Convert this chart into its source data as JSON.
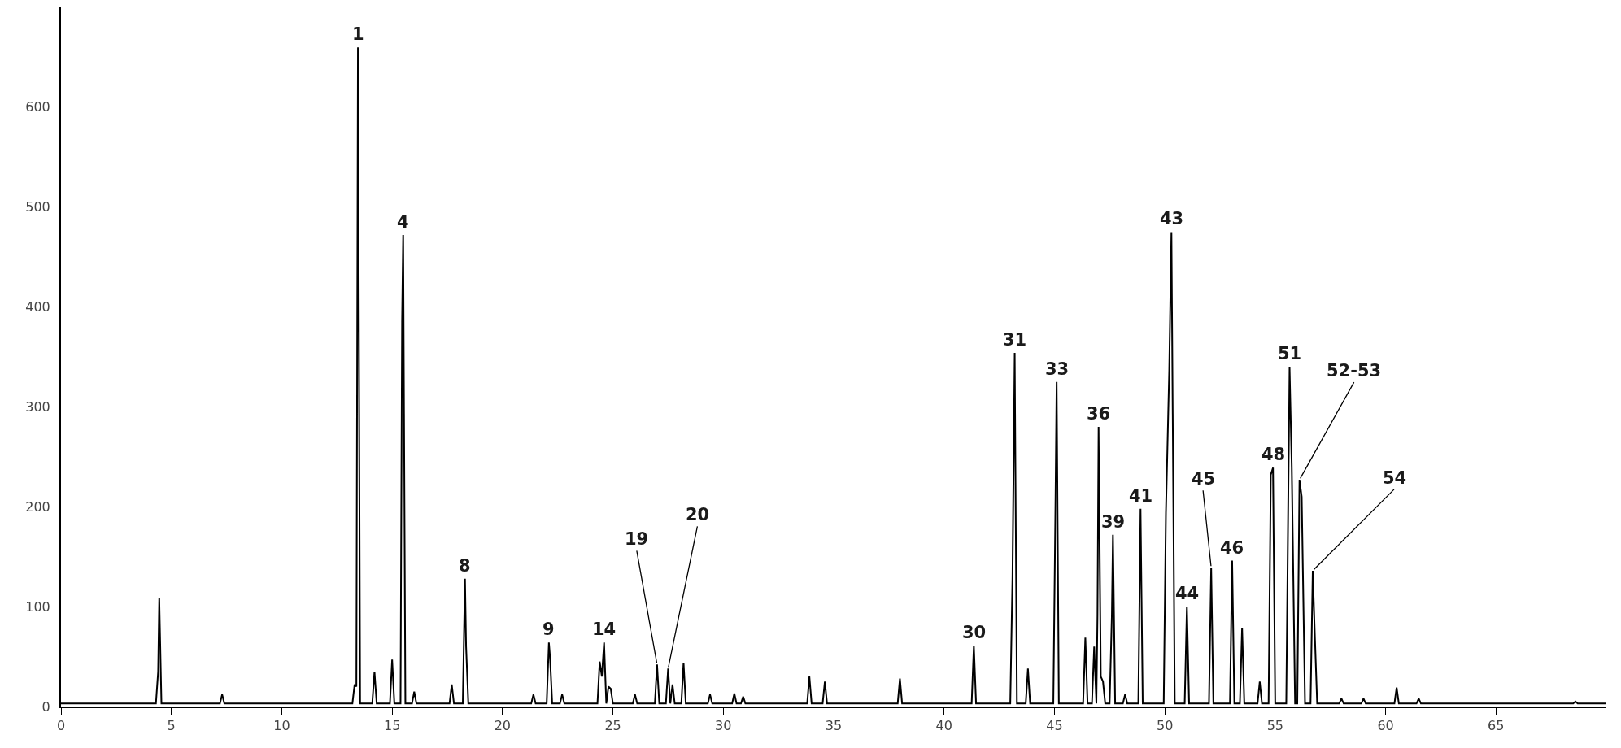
{
  "chart_data": {
    "type": "line",
    "x": [
      0,
      4.3,
      4.4,
      4.45,
      4.55,
      7.2,
      7.3,
      7.4,
      13.2,
      13.3,
      13.38,
      13.45,
      13.55,
      14.1,
      14.2,
      14.3,
      14.9,
      15.0,
      15.1,
      15.38,
      15.45,
      15.5,
      15.6,
      15.9,
      16.0,
      16.1,
      17.6,
      17.7,
      17.8,
      18.2,
      18.3,
      18.35,
      18.45,
      21.3,
      21.4,
      21.5,
      22.0,
      22.1,
      22.15,
      22.25,
      22.6,
      22.7,
      22.8,
      24.3,
      24.4,
      24.5,
      24.6,
      24.7,
      24.8,
      24.9,
      25.0,
      25.9,
      26.0,
      26.1,
      26.9,
      27.0,
      27.1,
      27.4,
      27.5,
      27.6,
      27.7,
      27.8,
      28.1,
      28.2,
      28.3,
      29.3,
      29.4,
      29.5,
      30.4,
      30.5,
      30.6,
      30.8,
      30.9,
      31.0,
      33.8,
      33.9,
      34.0,
      34.5,
      34.6,
      34.7,
      37.9,
      38.0,
      38.1,
      41.25,
      41.35,
      41.45,
      43.0,
      43.1,
      43.2,
      43.3,
      43.7,
      43.8,
      43.9,
      44.95,
      45.05,
      45.1,
      45.2,
      46.3,
      46.4,
      46.5,
      46.7,
      46.8,
      46.9,
      46.95,
      47.0,
      47.1,
      47.2,
      47.3,
      47.5,
      47.6,
      47.65,
      47.75,
      48.1,
      48.2,
      48.3,
      48.8,
      48.9,
      49.0,
      49.95,
      50.05,
      50.2,
      50.3,
      50.45,
      50.9,
      51.0,
      51.1,
      52.0,
      52.1,
      52.2,
      52.95,
      53.05,
      53.15,
      53.4,
      53.5,
      53.6,
      54.2,
      54.3,
      54.4,
      54.7,
      54.8,
      54.9,
      55.0,
      55.5,
      55.65,
      55.75,
      55.9,
      56.0,
      56.1,
      56.2,
      56.35,
      56.6,
      56.7,
      56.8,
      56.9,
      57.9,
      58.0,
      58.1,
      58.9,
      59.0,
      59.1,
      60.4,
      60.5,
      60.6,
      61.4,
      61.5,
      61.6,
      68.5,
      68.6,
      68.7,
      70
    ],
    "values": [
      3,
      3,
      35,
      109,
      3,
      3,
      12,
      3,
      3,
      22,
      20,
      660,
      3,
      3,
      35,
      3,
      3,
      47,
      3,
      3,
      385,
      472,
      3,
      3,
      15,
      3,
      3,
      22,
      3,
      3,
      128,
      60,
      3,
      3,
      12,
      3,
      3,
      64,
      50,
      3,
      3,
      12,
      3,
      3,
      45,
      30,
      64,
      3,
      20,
      18,
      3,
      3,
      12,
      3,
      3,
      42,
      3,
      3,
      38,
      3,
      22,
      3,
      3,
      44,
      3,
      3,
      12,
      3,
      3,
      13,
      3,
      3,
      10,
      3,
      3,
      30,
      3,
      3,
      25,
      3,
      3,
      28,
      3,
      3,
      61,
      3,
      3,
      130,
      354,
      3,
      3,
      38,
      3,
      3,
      210,
      325,
      3,
      3,
      69,
      3,
      3,
      60,
      3,
      92,
      280,
      30,
      25,
      3,
      3,
      90,
      172,
      3,
      3,
      12,
      3,
      3,
      198,
      3,
      3,
      194,
      337,
      475,
      3,
      3,
      100,
      3,
      3,
      139,
      3,
      3,
      146,
      3,
      3,
      79,
      3,
      3,
      25,
      3,
      3,
      232,
      239,
      3,
      3,
      340,
      240,
      3,
      3,
      227,
      210,
      3,
      3,
      136,
      68,
      3,
      3,
      8,
      3,
      3,
      8,
      3,
      3,
      19,
      3,
      3,
      8,
      3,
      3,
      5,
      3,
      3
    ],
    "color": "#000000",
    "xlim": [
      0,
      70
    ],
    "xticks": [
      0,
      5,
      10,
      15,
      20,
      25,
      30,
      35,
      40,
      45,
      50,
      55,
      60,
      65
    ],
    "ylim": [
      0,
      700
    ],
    "yticks": [
      0,
      100,
      200,
      300,
      400,
      500,
      600
    ],
    "legend": false,
    "annotations": [
      {
        "text": "1",
        "x": 13.45,
        "y": 660
      },
      {
        "text": "4",
        "x": 15.5,
        "y": 472
      },
      {
        "text": "8",
        "x": 18.3,
        "y": 128
      },
      {
        "text": "9",
        "x": 22.1,
        "y": 64
      },
      {
        "text": "14",
        "x": 24.6,
        "y": 64
      },
      {
        "text": "19",
        "x": 27.0,
        "y": 42
      },
      {
        "text": "20",
        "x": 27.5,
        "y": 38
      },
      {
        "text": "30",
        "x": 41.35,
        "y": 61
      },
      {
        "text": "31",
        "x": 43.2,
        "y": 354
      },
      {
        "text": "33",
        "x": 45.1,
        "y": 325
      },
      {
        "text": "36",
        "x": 47.0,
        "y": 280
      },
      {
        "text": "39",
        "x": 47.65,
        "y": 172
      },
      {
        "text": "41",
        "x": 48.9,
        "y": 198
      },
      {
        "text": "43",
        "x": 50.3,
        "y": 475
      },
      {
        "text": "44",
        "x": 51.0,
        "y": 100
      },
      {
        "text": "45",
        "x": 52.1,
        "y": 139
      },
      {
        "text": "46",
        "x": 53.05,
        "y": 146
      },
      {
        "text": "48",
        "x": 54.9,
        "y": 239
      },
      {
        "text": "51",
        "x": 55.65,
        "y": 340
      },
      {
        "text": "52-53",
        "x": 56.1,
        "y": 227
      },
      {
        "text": "54",
        "x": 56.7,
        "y": 136
      }
    ]
  }
}
